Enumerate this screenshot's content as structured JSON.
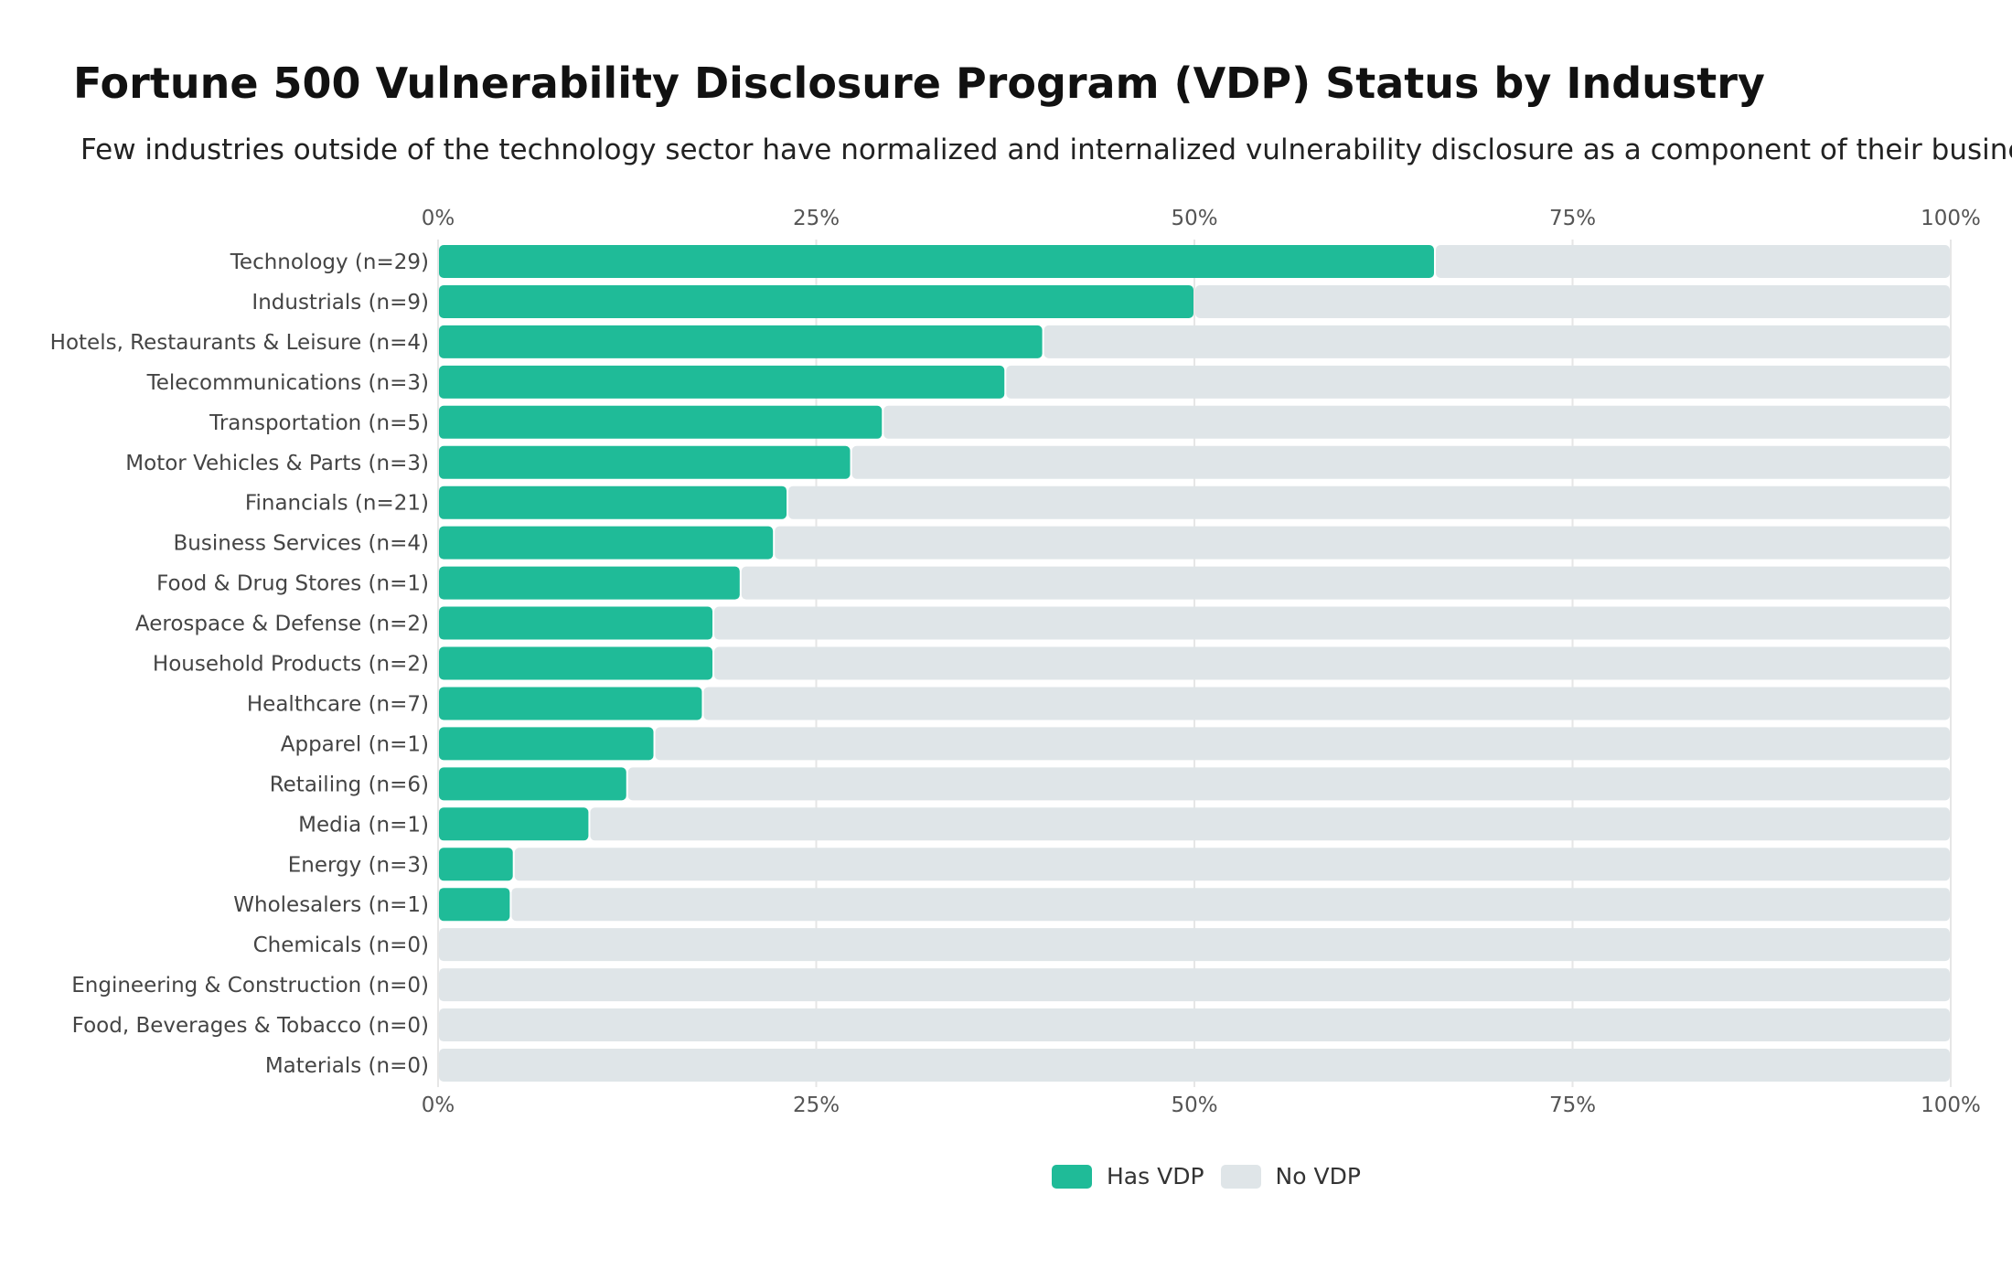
{
  "chart_data": {
    "type": "bar",
    "orientation": "horizontal",
    "stacked": true,
    "title": "Fortune 500 Vulnerability Disclosure Program (VDP) Status by Industry",
    "subtitle": "Few industries outside of the technology sector have normalized and internalized vulnerability disclosure as a component of their businesses.",
    "xlim": [
      0,
      100
    ],
    "x_ticks": [
      "0%",
      "25%",
      "50%",
      "75%",
      "100%"
    ],
    "x_tick_values": [
      0,
      25,
      50,
      75,
      100
    ],
    "x_axis_positions": [
      "top",
      "bottom"
    ],
    "grid": true,
    "legend_placement": "bottom-center",
    "categories": [
      "Technology (n=29)",
      "Industrials (n=9)",
      "Hotels, Restaurants & Leisure (n=4)",
      "Telecommunications (n=3)",
      "Transportation (n=5)",
      "Motor Vehicles & Parts (n=3)",
      "Financials (n=21)",
      "Business Services (n=4)",
      "Food & Drug Stores (n=1)",
      "Aerospace & Defense (n=2)",
      "Household Products (n=2)",
      "Healthcare (n=7)",
      "Apparel (n=1)",
      "Retailing (n=6)",
      "Media (n=1)",
      "Energy (n=3)",
      "Wholesalers (n=1)",
      "Chemicals (n=0)",
      "Engineering & Construction (n=0)",
      "Food, Beverages & Tobacco (n=0)",
      "Materials (n=0)"
    ],
    "series": [
      {
        "name": "Has VDP",
        "color": "#1fbb98",
        "values": [
          65.9,
          50.0,
          40.0,
          37.5,
          29.4,
          27.3,
          23.1,
          22.2,
          20.0,
          18.2,
          18.2,
          17.5,
          14.3,
          12.5,
          10.0,
          5.0,
          4.8,
          0,
          0,
          0,
          0
        ]
      },
      {
        "name": "No VDP",
        "color": "#dfe5e8",
        "values": [
          34.1,
          50.0,
          60.0,
          62.5,
          70.6,
          72.7,
          76.9,
          77.8,
          80.0,
          81.8,
          81.8,
          82.5,
          85.7,
          87.5,
          90.0,
          95.0,
          95.2,
          100,
          100,
          100,
          100
        ]
      }
    ]
  }
}
